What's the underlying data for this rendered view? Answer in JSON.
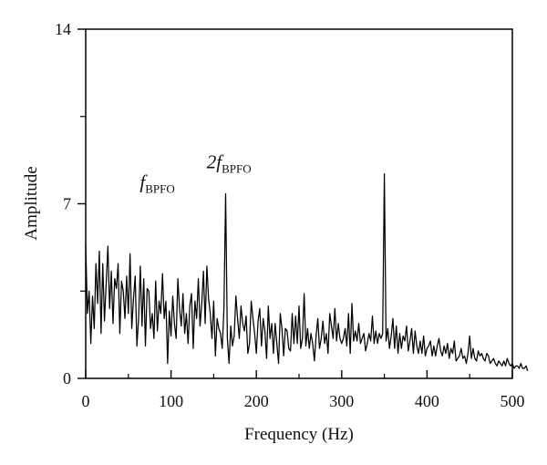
{
  "chart_data": {
    "type": "line",
    "xlabel": "Frequency (Hz)",
    "ylabel": "Amplitude",
    "xlim": [
      0,
      500
    ],
    "ylim": [
      0,
      14
    ],
    "x_ticks": [
      0,
      100,
      200,
      300,
      400,
      500
    ],
    "x_tick_labels": [
      "0",
      "100",
      "200",
      "300",
      "400",
      "500"
    ],
    "x_minor_ticks": [
      50,
      150,
      250,
      350,
      450
    ],
    "y_ticks": [
      0,
      7,
      14
    ],
    "y_tick_labels": [
      "0",
      "7",
      "14"
    ],
    "y_minor_ticks": [
      3.5,
      10.5
    ],
    "grid": false,
    "line_color": "#000000",
    "annotations": [
      {
        "prefix": "",
        "italic": "f",
        "subscript": "BPFO",
        "x": 84,
        "y": 7.4
      },
      {
        "prefix": "2",
        "italic": "f",
        "subscript": "BPFO",
        "x": 168,
        "y": 8.2
      }
    ],
    "series": [
      {
        "x_step": 2,
        "values": [
          5.4,
          2.6,
          3.5,
          1.4,
          3.3,
          2.0,
          4.6,
          3.0,
          5.1,
          1.8,
          4.6,
          2.3,
          3.8,
          5.3,
          2.8,
          4.3,
          2.2,
          4.0,
          3.6,
          4.6,
          1.8,
          3.9,
          3.5,
          2.4,
          4.1,
          2.6,
          5.0,
          2.0,
          3.2,
          4.1,
          1.3,
          2.4,
          4.5,
          2.1,
          4.0,
          1.3,
          3.6,
          3.5,
          2.0,
          2.6,
          1.6,
          3.9,
          1.9,
          3.1,
          2.6,
          4.2,
          2.4,
          3.1,
          0.6,
          2.7,
          1.7,
          3.3,
          2.2,
          1.6,
          4.0,
          2.8,
          2.1,
          3.4,
          1.8,
          2.6,
          1.4,
          2.9,
          3.4,
          1.2,
          3.1,
          2.4,
          4.0,
          2.1,
          3.0,
          4.3,
          2.2,
          4.5,
          3.2,
          2.6,
          1.6,
          3.1,
          0.9,
          2.4,
          2.0,
          1.8,
          1.2,
          2.8,
          7.4,
          1.6,
          0.6,
          2.1,
          1.3,
          1.7,
          3.3,
          2.4,
          1.6,
          2.9,
          2.2,
          1.9,
          2.5,
          1.0,
          1.4,
          3.1,
          2.4,
          1.8,
          1.0,
          2.3,
          2.8,
          1.3,
          2.4,
          1.9,
          0.8,
          2.9,
          1.6,
          2.2,
          1.0,
          2.2,
          1.4,
          0.6,
          2.6,
          2.0,
          0.9,
          2.0,
          1.9,
          1.2,
          1.1,
          2.6,
          1.4,
          2.5,
          1.4,
          2.9,
          1.2,
          1.6,
          3.4,
          1.3,
          2.0,
          1.2,
          1.8,
          1.4,
          0.7,
          1.7,
          2.4,
          1.2,
          1.6,
          2.3,
          1.4,
          1.8,
          1.0,
          2.6,
          2.1,
          1.6,
          2.8,
          1.5,
          2.2,
          1.6,
          1.4,
          1.6,
          2.0,
          1.3,
          2.6,
          1.0,
          3.0,
          1.5,
          1.9,
          1.5,
          2.2,
          1.4,
          1.6,
          1.8,
          1.1,
          1.4,
          1.8,
          1.5,
          2.5,
          1.4,
          1.9,
          1.4,
          1.8,
          1.6,
          1.8,
          8.2,
          1.5,
          2.0,
          1.2,
          1.7,
          2.4,
          1.2,
          2.1,
          1.0,
          1.8,
          1.2,
          1.7,
          1.5,
          2.1,
          1.1,
          1.5,
          2.0,
          1.0,
          1.9,
          1.3,
          1.0,
          1.5,
          1.0,
          1.7,
          0.9,
          1.2,
          1.3,
          1.5,
          0.9,
          1.3,
          0.9,
          1.3,
          1.6,
          1.1,
          0.9,
          1.3,
          1.0,
          1.4,
          0.8,
          1.2,
          1.0,
          1.5,
          0.7,
          0.8,
          0.9,
          1.2,
          0.8,
          0.9,
          0.6,
          1.0,
          1.7,
          0.8,
          1.2,
          0.8,
          0.7,
          1.1,
          0.9,
          1.0,
          0.8,
          0.7,
          1.0,
          0.9,
          0.6,
          0.7,
          0.8,
          0.6,
          0.5,
          0.7,
          0.6,
          0.5,
          0.7,
          0.5,
          0.8,
          0.6,
          0.5,
          0.6,
          0.4,
          0.5,
          0.5,
          0.4,
          0.6,
          0.4,
          0.4,
          0.5,
          0.3
        ]
      }
    ]
  }
}
